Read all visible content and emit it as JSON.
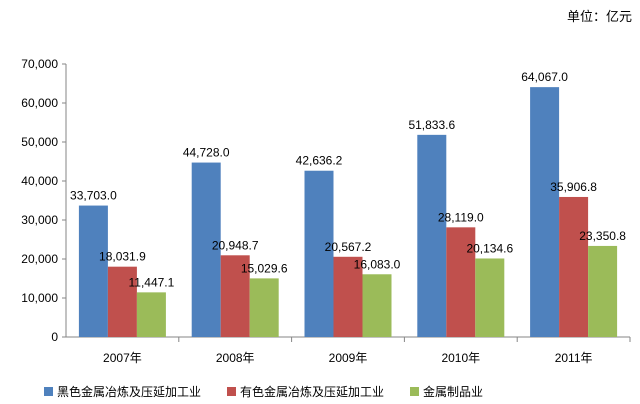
{
  "unit_label": "单位：亿元",
  "chart_data": {
    "type": "bar",
    "categories": [
      "2007年",
      "2008年",
      "2009年",
      "2010年",
      "2011年"
    ],
    "series": [
      {
        "name": "黑色金属冶炼及压延加工业",
        "color": "#4F81BD",
        "values": [
          33703.0,
          44728.0,
          42636.2,
          51833.6,
          64067.0
        ],
        "labels": [
          "33,703.0",
          "44,728.0",
          "42,636.2",
          "51,833.6",
          "64,067.0"
        ]
      },
      {
        "name": "有色金属冶炼及压延加工业",
        "color": "#C0504D",
        "values": [
          18031.9,
          20948.7,
          20567.2,
          28119.0,
          35906.8
        ],
        "labels": [
          "18,031.9",
          "20,948.7",
          "20,567.2",
          "28,119.0",
          "35,906.8"
        ]
      },
      {
        "name": "金属制品业",
        "color": "#9BBB59",
        "values": [
          11447.1,
          15029.6,
          16083.0,
          20134.6,
          23350.8
        ],
        "labels": [
          "11,447.1",
          "15,029.6",
          "16,083.0",
          "20,134.6",
          "23,350.8"
        ]
      }
    ],
    "yticks": [
      0,
      10000,
      20000,
      30000,
      40000,
      50000,
      60000,
      70000
    ],
    "ytick_labels": [
      "0",
      "10,000",
      "20,000",
      "30,000",
      "40,000",
      "50,000",
      "60,000",
      "70,000"
    ],
    "ylim": [
      0,
      70000
    ],
    "legend_position": "bottom"
  }
}
